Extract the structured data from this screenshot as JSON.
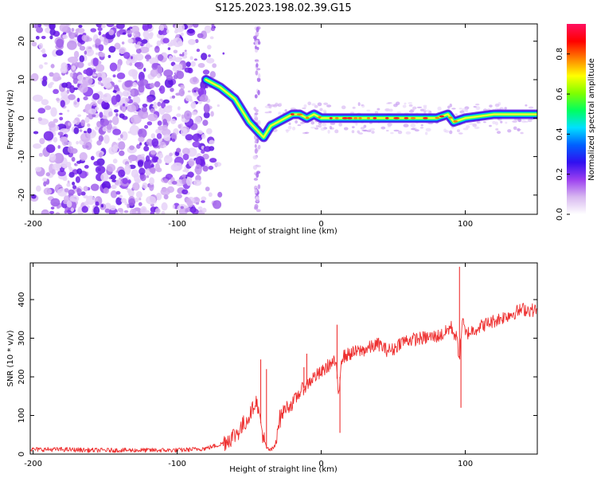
{
  "figure_title": "S125.2023.198.02.39.G15",
  "chart_data": [
    {
      "type": "heatmap",
      "xlabel": "Height of straight line (km)",
      "ylabel": "Frequency (Hz)",
      "xlim": [
        -202,
        150
      ],
      "ylim": [
        -25,
        24.5
      ],
      "x_ticks": [
        -200,
        -100,
        0,
        100
      ],
      "y_ticks": [
        -20,
        -10,
        0,
        10,
        20
      ],
      "colorbar": {
        "label": "Normalized spectral amplitude",
        "range": [
          0,
          0.95
        ],
        "ticks": [
          0.0,
          0.2,
          0.4,
          0.6,
          0.8
        ],
        "colormap": [
          "#ffffff",
          "#d8b8f0",
          "#9c40f0",
          "#3010f0",
          "#0060ff",
          "#00e0ff",
          "#00ff60",
          "#80ff00",
          "#ffff00",
          "#ff8000",
          "#ff0000",
          "#ff1060"
        ]
      },
      "ridge": {
        "x": [
          -80,
          -70,
          -60,
          -55,
          -50,
          -45,
          -40,
          -35,
          -30,
          -25,
          -20,
          -15,
          -10,
          -5,
          0,
          10,
          20,
          40,
          60,
          80,
          88,
          92,
          100,
          120,
          150
        ],
        "frequency": [
          10,
          8,
          5,
          2,
          -1,
          -3,
          -5,
          -2,
          -1,
          0,
          1,
          1,
          0,
          1,
          0,
          0,
          0,
          0,
          0,
          0,
          1,
          -1,
          0,
          1,
          1
        ]
      }
    },
    {
      "type": "line",
      "xlabel": "Height of straight line (km)",
      "ylabel": "SNR (10 * v/v)",
      "xlim": [
        -202,
        150
      ],
      "ylim": [
        0,
        495
      ],
      "x_ticks": [
        -200,
        -100,
        0,
        100
      ],
      "y_ticks": [
        0,
        100,
        200,
        300,
        400
      ],
      "series_color": "#ee3030",
      "x": [
        -202,
        -180,
        -160,
        -140,
        -120,
        -100,
        -90,
        -80,
        -70,
        -60,
        -55,
        -50,
        -45,
        -42,
        -40,
        -38,
        -35,
        -32,
        -30,
        -25,
        -20,
        -15,
        -10,
        -5,
        0,
        5,
        10,
        12,
        14,
        20,
        30,
        40,
        45,
        50,
        55,
        60,
        70,
        80,
        85,
        90,
        94,
        96,
        98,
        100,
        110,
        120,
        130,
        140,
        150
      ],
      "y": [
        12,
        12,
        10,
        10,
        10,
        10,
        12,
        15,
        25,
        50,
        70,
        100,
        140,
        80,
        40,
        15,
        10,
        20,
        80,
        120,
        130,
        160,
        180,
        200,
        210,
        230,
        240,
        150,
        250,
        260,
        270,
        285,
        270,
        270,
        290,
        295,
        300,
        305,
        310,
        330,
        300,
        250,
        350,
        310,
        330,
        345,
        360,
        375,
        372
      ],
      "spikes": [
        {
          "x": -42,
          "y": 245
        },
        {
          "x": -38,
          "y": 220
        },
        {
          "x": -12,
          "y": 225
        },
        {
          "x": -10,
          "y": 260
        },
        {
          "x": 11,
          "y": 335
        },
        {
          "x": 13,
          "y": 55
        },
        {
          "x": 96,
          "y": 485
        },
        {
          "x": 97,
          "y": 120
        }
      ]
    }
  ]
}
